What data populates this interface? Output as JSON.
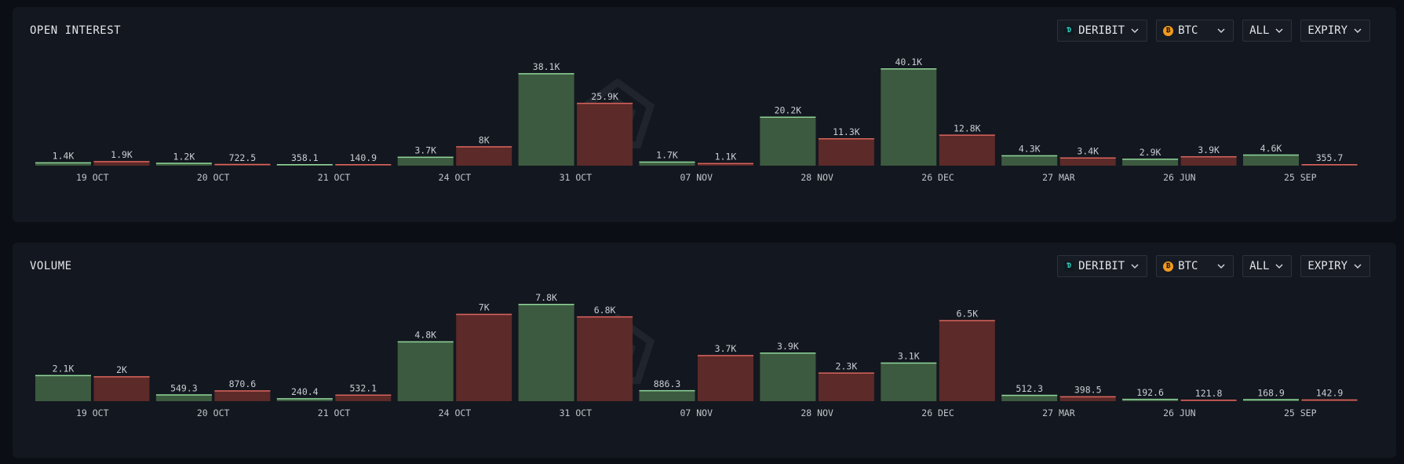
{
  "controls": {
    "exchange": "DERIBIT",
    "asset": "BTC",
    "filter": "ALL",
    "group": "EXPIRY"
  },
  "colors": {
    "calls": "#3c5a3f",
    "calls_edge": "#8fd49a",
    "puts": "#5c2a28",
    "puts_edge": "#d9645e"
  },
  "chart_data": [
    {
      "type": "bar",
      "title": "OPEN INTEREST",
      "categories": [
        "19 OCT",
        "20 OCT",
        "21 OCT",
        "24 OCT",
        "31 OCT",
        "07 NOV",
        "28 NOV",
        "26 DEC",
        "27 MAR",
        "26 JUN",
        "25 SEP"
      ],
      "series": [
        {
          "values": [
            1400,
            1200,
            358.1,
            3700,
            38100,
            1700,
            20200,
            40100,
            4300,
            2900,
            4600
          ],
          "labels": [
            "1.4K",
            "1.2K",
            "358.1",
            "3.7K",
            "38.1K",
            "1.7K",
            "20.2K",
            "40.1K",
            "4.3K",
            "2.9K",
            "4.6K"
          ]
        },
        {
          "values": [
            1900,
            722.5,
            140.9,
            8000,
            25900,
            1100,
            11300,
            12800,
            3400,
            3900,
            355.7
          ],
          "labels": [
            "1.9K",
            "722.5",
            "140.9",
            "8K",
            "25.9K",
            "1.1K",
            "11.3K",
            "12.8K",
            "3.4K",
            "3.9K",
            "355.7"
          ]
        }
      ]
    },
    {
      "type": "bar",
      "title": "VOLUME",
      "categories": [
        "19 OCT",
        "20 OCT",
        "21 OCT",
        "24 OCT",
        "31 OCT",
        "07 NOV",
        "28 NOV",
        "26 DEC",
        "27 MAR",
        "26 JUN",
        "25 SEP"
      ],
      "series": [
        {
          "values": [
            2100,
            549.3,
            240.4,
            4800,
            7800,
            886.3,
            3900,
            3100,
            512.3,
            192.6,
            168.9
          ],
          "labels": [
            "2.1K",
            "549.3",
            "240.4",
            "4.8K",
            "7.8K",
            "886.3",
            "3.9K",
            "3.1K",
            "512.3",
            "192.6",
            "168.9"
          ]
        },
        {
          "values": [
            2000,
            870.6,
            532.1,
            7000,
            6800,
            3700,
            2300,
            6500,
            398.5,
            121.8,
            142.9
          ],
          "labels": [
            "2K",
            "870.6",
            "532.1",
            "7K",
            "6.8K",
            "3.7K",
            "2.3K",
            "6.5K",
            "398.5",
            "121.8",
            "142.9"
          ]
        }
      ]
    }
  ]
}
